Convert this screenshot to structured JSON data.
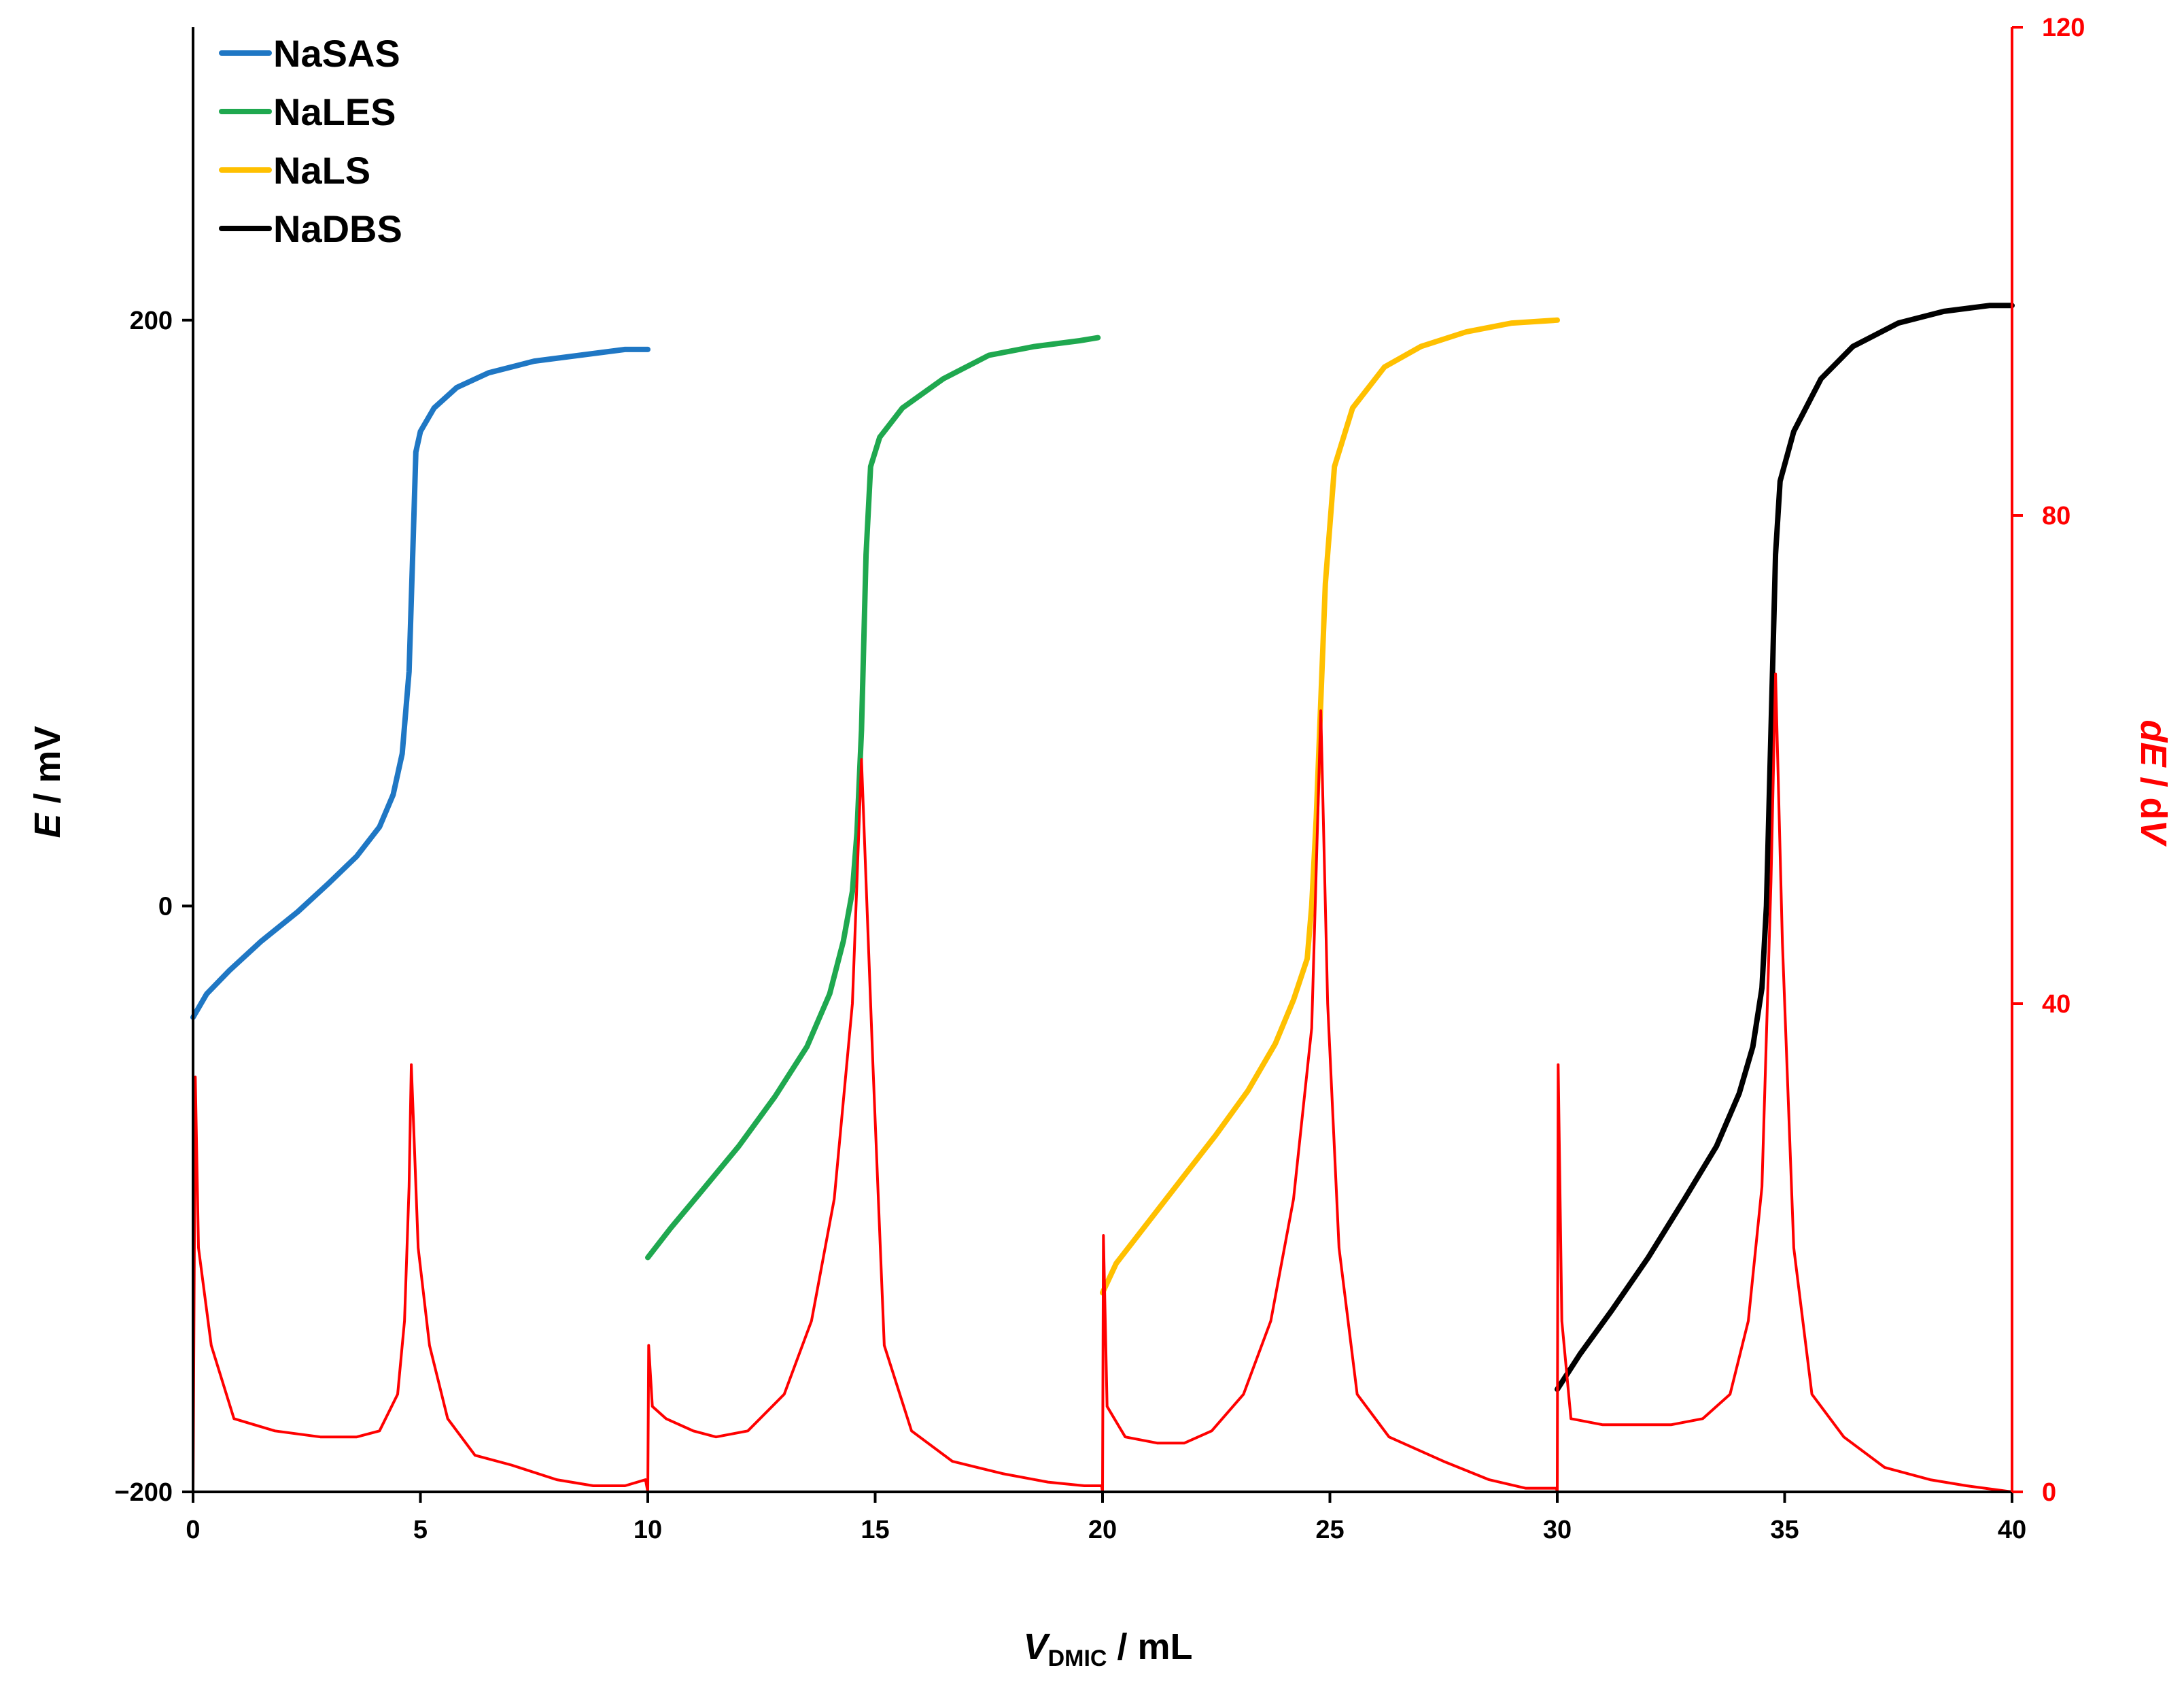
{
  "chart_data": {
    "type": "line",
    "title": "",
    "xlabel": {
      "main": "V",
      "sub": "DMIC",
      "rest": " / mL"
    },
    "ylabel": {
      "main": "E",
      "rest": " / mV"
    },
    "y2label": {
      "main": "dE",
      "mid": " / d",
      "tail": "V"
    },
    "xlim": [
      0,
      40
    ],
    "ylim": [
      -200,
      300
    ],
    "y2lim": [
      0,
      120
    ],
    "xticks": [
      0,
      5,
      10,
      15,
      20,
      25,
      30,
      35,
      40
    ],
    "yticks": [
      -200,
      0,
      200
    ],
    "y2ticks": [
      0,
      40,
      80,
      120
    ],
    "xtick_labels": [
      "0",
      "5",
      "10",
      "15",
      "20",
      "25",
      "30",
      "35",
      "40"
    ],
    "ytick_labels": [
      "−200",
      "0",
      "200"
    ],
    "y2tick_labels": [
      "0",
      "40",
      "80",
      "120"
    ],
    "legend_position": "top-left",
    "series": [
      {
        "name": "NaSAS",
        "axis": "left",
        "color": "#1f77c4",
        "points": [
          [
            0,
            -38
          ],
          [
            0.3,
            -30
          ],
          [
            0.8,
            -22
          ],
          [
            1.5,
            -12
          ],
          [
            2.3,
            -2
          ],
          [
            3.0,
            8
          ],
          [
            3.6,
            17
          ],
          [
            4.1,
            27
          ],
          [
            4.4,
            38
          ],
          [
            4.6,
            52
          ],
          [
            4.75,
            80
          ],
          [
            4.85,
            130
          ],
          [
            4.9,
            155
          ],
          [
            5.0,
            162
          ],
          [
            5.3,
            170
          ],
          [
            5.8,
            177
          ],
          [
            6.5,
            182
          ],
          [
            7.5,
            186
          ],
          [
            8.5,
            188
          ],
          [
            9.5,
            190
          ],
          [
            10.0,
            190
          ]
        ]
      },
      {
        "name": "NaLES",
        "axis": "left",
        "color": "#1fa84f",
        "points": [
          [
            10,
            -120
          ],
          [
            10.5,
            -110
          ],
          [
            11.2,
            -97
          ],
          [
            12.0,
            -82
          ],
          [
            12.8,
            -65
          ],
          [
            13.5,
            -48
          ],
          [
            14.0,
            -30
          ],
          [
            14.3,
            -12
          ],
          [
            14.5,
            5
          ],
          [
            14.6,
            25
          ],
          [
            14.7,
            60
          ],
          [
            14.8,
            120
          ],
          [
            14.9,
            150
          ],
          [
            15.1,
            160
          ],
          [
            15.6,
            170
          ],
          [
            16.5,
            180
          ],
          [
            17.5,
            188
          ],
          [
            18.5,
            191
          ],
          [
            19.5,
            193
          ],
          [
            19.9,
            194
          ]
        ]
      },
      {
        "name": "NaLS",
        "axis": "left",
        "color": "#ffc000",
        "points": [
          [
            20,
            -132
          ],
          [
            20.3,
            -122
          ],
          [
            21.0,
            -108
          ],
          [
            21.8,
            -92
          ],
          [
            22.5,
            -78
          ],
          [
            23.2,
            -63
          ],
          [
            23.8,
            -47
          ],
          [
            24.2,
            -32
          ],
          [
            24.5,
            -18
          ],
          [
            24.6,
            0
          ],
          [
            24.7,
            30
          ],
          [
            24.8,
            70
          ],
          [
            24.9,
            110
          ],
          [
            25.1,
            150
          ],
          [
            25.5,
            170
          ],
          [
            26.2,
            184
          ],
          [
            27.0,
            191
          ],
          [
            28.0,
            196
          ],
          [
            29.0,
            199
          ],
          [
            30.0,
            200
          ]
        ]
      },
      {
        "name": "NaDBS",
        "axis": "left",
        "color": "#000000",
        "points": [
          [
            30,
            -165
          ],
          [
            30.5,
            -153
          ],
          [
            31.2,
            -138
          ],
          [
            32.0,
            -120
          ],
          [
            32.8,
            -100
          ],
          [
            33.5,
            -82
          ],
          [
            34.0,
            -64
          ],
          [
            34.3,
            -48
          ],
          [
            34.5,
            -28
          ],
          [
            34.6,
            0
          ],
          [
            34.7,
            60
          ],
          [
            34.8,
            120
          ],
          [
            34.9,
            145
          ],
          [
            35.2,
            162
          ],
          [
            35.8,
            180
          ],
          [
            36.5,
            191
          ],
          [
            37.5,
            199
          ],
          [
            38.5,
            203
          ],
          [
            39.5,
            205
          ],
          [
            40.0,
            205
          ]
        ]
      },
      {
        "name": "dE/dV",
        "axis": "right",
        "color": "#ff0000",
        "legend": false,
        "points": [
          [
            0,
            0
          ],
          [
            0.05,
            34
          ],
          [
            0.12,
            20
          ],
          [
            0.4,
            12
          ],
          [
            0.9,
            6
          ],
          [
            1.8,
            5
          ],
          [
            2.8,
            4.5
          ],
          [
            3.6,
            4.5
          ],
          [
            4.1,
            5
          ],
          [
            4.5,
            8
          ],
          [
            4.65,
            14
          ],
          [
            4.75,
            25
          ],
          [
            4.8,
            35
          ],
          [
            4.85,
            30
          ],
          [
            4.95,
            20
          ],
          [
            5.2,
            12
          ],
          [
            5.6,
            6
          ],
          [
            6.2,
            3
          ],
          [
            7.0,
            2.2
          ],
          [
            8.0,
            1
          ],
          [
            8.8,
            0.5
          ],
          [
            9.5,
            0.5
          ],
          [
            9.95,
            1
          ],
          [
            10.0,
            0
          ],
          [
            10.02,
            12
          ],
          [
            10.1,
            7
          ],
          [
            10.4,
            6
          ],
          [
            11.0,
            5
          ],
          [
            11.5,
            4.5
          ],
          [
            12.2,
            5
          ],
          [
            13.0,
            8
          ],
          [
            13.6,
            14
          ],
          [
            14.1,
            24
          ],
          [
            14.5,
            40
          ],
          [
            14.7,
            60
          ],
          [
            14.8,
            50
          ],
          [
            14.95,
            35
          ],
          [
            15.2,
            12
          ],
          [
            15.8,
            5
          ],
          [
            16.7,
            2.5
          ],
          [
            17.8,
            1.5
          ],
          [
            18.8,
            0.8
          ],
          [
            19.6,
            0.5
          ],
          [
            19.98,
            0.5
          ],
          [
            20.0,
            0
          ],
          [
            20.02,
            21
          ],
          [
            20.1,
            7
          ],
          [
            20.5,
            4.5
          ],
          [
            21.2,
            4
          ],
          [
            21.8,
            4
          ],
          [
            22.4,
            5
          ],
          [
            23.1,
            8
          ],
          [
            23.7,
            14
          ],
          [
            24.2,
            24
          ],
          [
            24.6,
            38
          ],
          [
            24.8,
            64
          ],
          [
            24.95,
            40
          ],
          [
            25.2,
            20
          ],
          [
            25.6,
            8
          ],
          [
            26.3,
            4.5
          ],
          [
            27.5,
            2.5
          ],
          [
            28.5,
            1
          ],
          [
            29.3,
            0.3
          ],
          [
            29.98,
            0.3
          ],
          [
            30.0,
            0
          ],
          [
            30.02,
            35
          ],
          [
            30.1,
            14
          ],
          [
            30.3,
            6
          ],
          [
            31.0,
            5.5
          ],
          [
            31.7,
            5.5
          ],
          [
            32.5,
            5.5
          ],
          [
            33.2,
            6
          ],
          [
            33.8,
            8
          ],
          [
            34.2,
            14
          ],
          [
            34.5,
            25
          ],
          [
            34.7,
            50
          ],
          [
            34.8,
            67
          ],
          [
            34.95,
            45
          ],
          [
            35.2,
            20
          ],
          [
            35.6,
            8
          ],
          [
            36.3,
            4.5
          ],
          [
            37.2,
            2
          ],
          [
            38.2,
            1
          ],
          [
            39.0,
            0.5
          ],
          [
            39.6,
            0.2
          ],
          [
            40.0,
            0
          ]
        ]
      }
    ]
  }
}
